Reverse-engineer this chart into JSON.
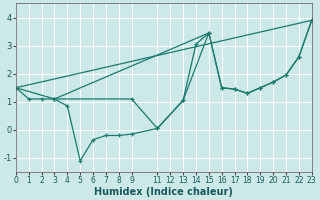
{
  "xlabel": "Humidex (Indice chaleur)",
  "bg_color": "#cce8e8",
  "grid_color": "#ffffff",
  "line_color": "#1a7a6e",
  "xlim": [
    0,
    23
  ],
  "ylim": [
    -1.5,
    4.5
  ],
  "xticks": [
    0,
    1,
    2,
    3,
    4,
    5,
    6,
    7,
    8,
    9,
    11,
    12,
    13,
    14,
    15,
    16,
    17,
    18,
    19,
    20,
    21,
    22,
    23
  ],
  "yticks": [
    -1,
    0,
    1,
    2,
    3,
    4
  ],
  "series": [
    {
      "x": [
        0,
        1,
        2,
        3,
        4,
        5,
        6,
        7,
        8,
        9,
        11,
        13,
        14,
        15,
        16,
        17,
        18,
        19,
        20,
        21,
        22,
        23
      ],
      "y": [
        1.5,
        1.1,
        1.1,
        1.1,
        0.85,
        -1.1,
        -0.35,
        -0.2,
        -0.2,
        -0.15,
        0.05,
        1.05,
        3.05,
        3.45,
        1.5,
        1.45,
        1.3,
        1.5,
        1.7,
        1.95,
        2.6,
        3.9
      ]
    },
    {
      "x": [
        0,
        3,
        9,
        11,
        13,
        15,
        16,
        17,
        18,
        19,
        20,
        21,
        22,
        23
      ],
      "y": [
        1.5,
        1.1,
        1.1,
        0.05,
        1.05,
        3.45,
        1.5,
        1.45,
        1.3,
        1.5,
        1.7,
        1.95,
        2.6,
        3.9
      ]
    },
    {
      "comment": "straight diagonal from (0,1.5) to (23,3.9)",
      "x": [
        0,
        23
      ],
      "y": [
        1.5,
        3.9
      ]
    },
    {
      "x": [
        3,
        15
      ],
      "y": [
        1.1,
        3.45
      ]
    }
  ]
}
